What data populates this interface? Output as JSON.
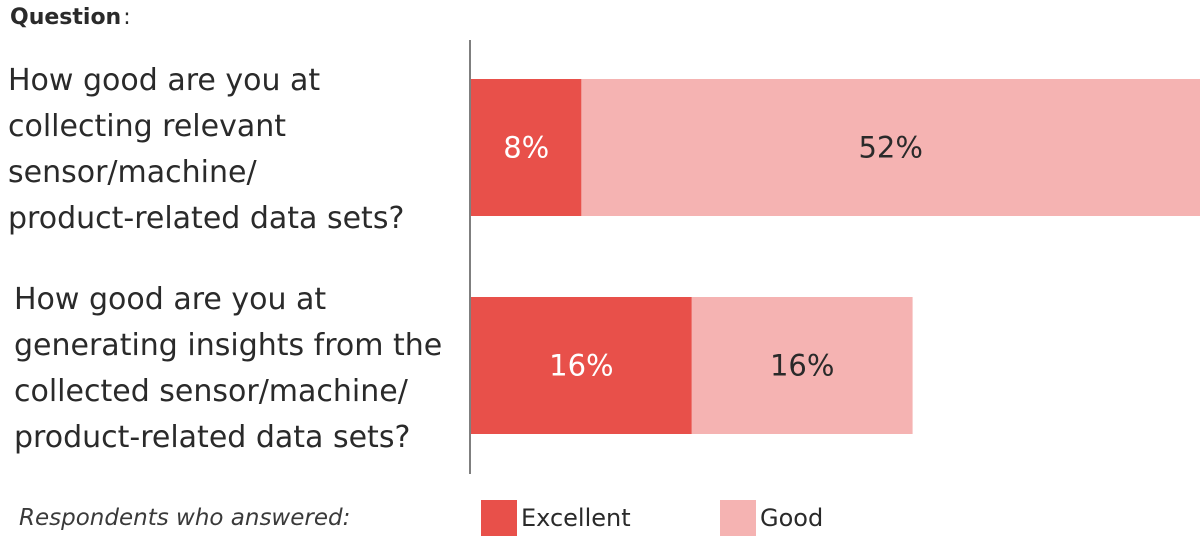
{
  "header": {
    "label": "Question",
    "colon": ":"
  },
  "questions": [
    {
      "lines": [
        "How good are you at",
        "collecting relevant",
        "sensor/machine/",
        "product-related data sets?"
      ]
    },
    {
      "lines": [
        "How good are you at",
        "generating insights from the",
        "collected sensor/machine/",
        "product-related data sets?"
      ]
    }
  ],
  "legend": {
    "caption": "Respondents who answered:",
    "items": [
      {
        "label": "Excellent",
        "color": "#e8504a"
      },
      {
        "label": "Good",
        "color": "#f5b3b2"
      }
    ]
  },
  "chart_data": {
    "type": "bar",
    "orientation": "horizontal",
    "stacked": true,
    "categories": [
      "How good are you at collecting relevant sensor/machine/product-related data sets?",
      "How good are you at generating insights from the collected sensor/machine/product-related data sets?"
    ],
    "series": [
      {
        "name": "Excellent",
        "values": [
          8,
          16
        ],
        "labels": [
          "8%",
          "16%"
        ],
        "color": "#e8504a",
        "label_color": "#ffffff"
      },
      {
        "name": "Good",
        "values": [
          52,
          16
        ],
        "labels": [
          "52%",
          "16%"
        ],
        "color": "#f5b3b2",
        "label_color": "#2a2a2a"
      }
    ],
    "unit": "%",
    "xlim": [
      0,
      60
    ],
    "title": "",
    "xlabel": "",
    "ylabel": "",
    "legend_position": "bottom",
    "grid": false
  }
}
